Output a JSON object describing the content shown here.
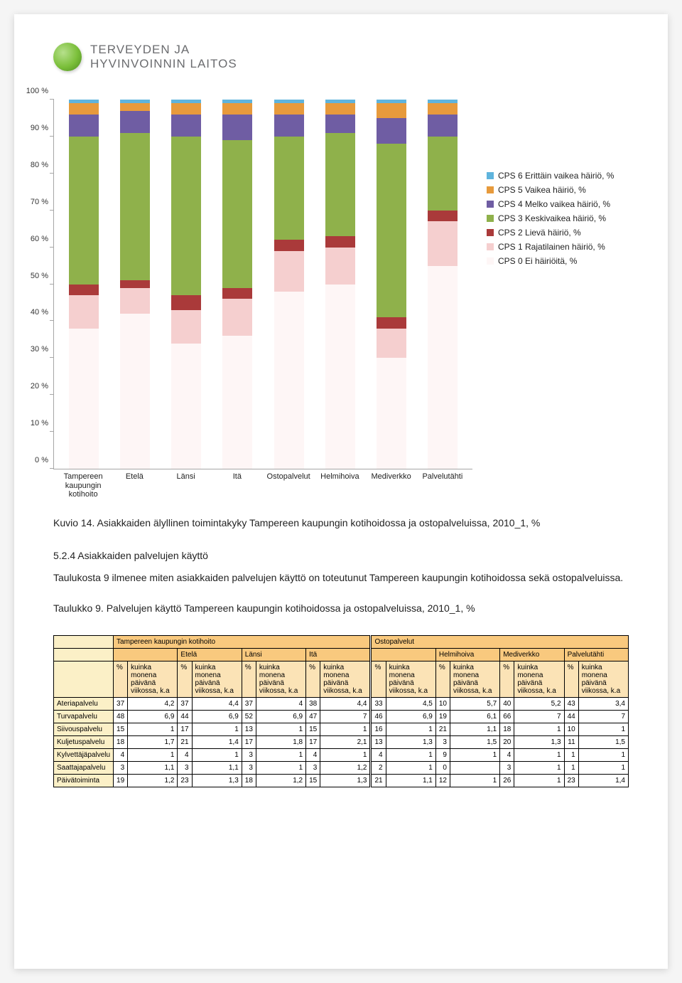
{
  "logo": {
    "line1": "TERVEYDEN JA",
    "line2": "HYVINVOINNIN LAITOS"
  },
  "chart": {
    "type": "bar-stacked-100",
    "y_ticks": [
      "0 %",
      "10 %",
      "20 %",
      "30 %",
      "40 %",
      "50 %",
      "60 %",
      "70 %",
      "80 %",
      "90 %",
      "100 %"
    ],
    "categories": [
      "Tampereen kaupungin kotihoito",
      "Etelä",
      "Länsi",
      "Itä",
      "Ostopalvelut",
      "Helmihoiva",
      "Mediverkko",
      "Palvelutähti"
    ],
    "legend": [
      {
        "label": "CPS 6 Erittäin vaikea häiriö, %",
        "color": "#5fb4dd"
      },
      {
        "label": "CPS 5 Vaikea häiriö, %",
        "color": "#e79a3c"
      },
      {
        "label": "CPS 4 Melko vaikea häiriö, %",
        "color": "#6f5da3"
      },
      {
        "label": "CPS 3 Keskivaikea häiriö, %",
        "color": "#8fb14b"
      },
      {
        "label": "CPS 2 Lievä häiriö, %",
        "color": "#aa3a3a"
      },
      {
        "label": "CPS 1 Rajatilainen häiriö, %",
        "color": "#f5cfcf"
      },
      {
        "label": "CPS 0 Ei häiriöitä, %",
        "color": "#fef6f6"
      }
    ],
    "series_colors": [
      "#fef6f6",
      "#f5cfcf",
      "#aa3a3a",
      "#8fb14b",
      "#6f5da3",
      "#e79a3c",
      "#5fb4dd"
    ],
    "data": [
      [
        38,
        9,
        3,
        40,
        6,
        3,
        1
      ],
      [
        42,
        7,
        2,
        40,
        6,
        2,
        1
      ],
      [
        34,
        9,
        4,
        43,
        6,
        3,
        1
      ],
      [
        36,
        10,
        3,
        40,
        7,
        3,
        1
      ],
      [
        48,
        11,
        3,
        28,
        6,
        3,
        1
      ],
      [
        50,
        10,
        3,
        28,
        5,
        3,
        1
      ],
      [
        30,
        8,
        3,
        47,
        7,
        4,
        1
      ],
      [
        55,
        12,
        3,
        20,
        6,
        3,
        1
      ]
    ],
    "background_color": "#ffffff",
    "axis_color": "#a6a6a6",
    "label_fontsize": 11
  },
  "caption_chart": "Kuvio 14. Asiakkaiden älyllinen toimintakyky Tampereen kaupungin kotihoidossa ja ostopalveluissa, 2010_1, %",
  "section_heading": "5.2.4 Asiakkaiden palvelujen käyttö",
  "body_para": "Taulukosta 9 ilmenee miten asiakkaiden palvelujen käyttö on toteutunut Tampereen kaupungin kotihoidossa sekä ostopalveluissa.",
  "caption_table": "Taulukko 9. Palvelujen käyttö Tampereen kaupungin kotihoidossa ja ostopalveluissa, 2010_1, %",
  "table": {
    "group_a": "Tampereen kaupungin kotihoito",
    "group_b": "Ostopalvelut",
    "cols_a": [
      "Etelä",
      "Länsi",
      "Itä"
    ],
    "cols_b": [
      "Helmihoiva",
      "Mediverkko",
      "Palvelutähti"
    ],
    "sub_pct": "%",
    "sub_km": "kuinka monena päivänä viikossa, k.a",
    "rows": [
      {
        "label": "Ateriapalvelu",
        "a": [
          [
            "37",
            "4,2"
          ],
          [
            "37",
            "4,4"
          ],
          [
            "37",
            "4"
          ],
          [
            "38",
            "4,4"
          ]
        ],
        "b": [
          [
            "33",
            "4,5"
          ],
          [
            "10",
            "5,7"
          ],
          [
            "40",
            "5,2"
          ],
          [
            "43",
            "3,4"
          ]
        ]
      },
      {
        "label": "Turvapalvelu",
        "a": [
          [
            "48",
            "6,9"
          ],
          [
            "44",
            "6,9"
          ],
          [
            "52",
            "6,9"
          ],
          [
            "47",
            "7"
          ]
        ],
        "b": [
          [
            "46",
            "6,9"
          ],
          [
            "19",
            "6,1"
          ],
          [
            "66",
            "7"
          ],
          [
            "44",
            "7"
          ]
        ]
      },
      {
        "label": "Siivouspalvelu",
        "a": [
          [
            "15",
            "1"
          ],
          [
            "17",
            "1"
          ],
          [
            "13",
            "1"
          ],
          [
            "15",
            "1"
          ]
        ],
        "b": [
          [
            "16",
            "1"
          ],
          [
            "21",
            "1,1"
          ],
          [
            "18",
            "1"
          ],
          [
            "10",
            "1"
          ]
        ]
      },
      {
        "label": "Kuljetuspalvelu",
        "a": [
          [
            "18",
            "1,7"
          ],
          [
            "21",
            "1,4"
          ],
          [
            "17",
            "1,8"
          ],
          [
            "17",
            "2,1"
          ]
        ],
        "b": [
          [
            "13",
            "1,3"
          ],
          [
            "3",
            "1,5"
          ],
          [
            "20",
            "1,3"
          ],
          [
            "11",
            "1,5"
          ]
        ]
      },
      {
        "label": "Kylvettäjäpalvelu",
        "a": [
          [
            "4",
            "1"
          ],
          [
            "4",
            "1"
          ],
          [
            "3",
            "1"
          ],
          [
            "4",
            "1"
          ]
        ],
        "b": [
          [
            "4",
            "1"
          ],
          [
            "9",
            "1"
          ],
          [
            "4",
            "1"
          ],
          [
            "1",
            "1"
          ]
        ]
      },
      {
        "label": "Saattajapalvelu",
        "a": [
          [
            "3",
            "1,1"
          ],
          [
            "3",
            "1,1"
          ],
          [
            "3",
            "1"
          ],
          [
            "3",
            "1,2"
          ]
        ],
        "b": [
          [
            "2",
            "1"
          ],
          [
            "0",
            ""
          ],
          [
            "3",
            "1"
          ],
          [
            "1",
            "1"
          ]
        ]
      },
      {
        "label": "Päivätoiminta",
        "a": [
          [
            "19",
            "1,2"
          ],
          [
            "23",
            "1,3"
          ],
          [
            "18",
            "1,2"
          ],
          [
            "15",
            "1,3"
          ]
        ],
        "b": [
          [
            "21",
            "1,1"
          ],
          [
            "12",
            "1"
          ],
          [
            "26",
            "1"
          ],
          [
            "23",
            "1,4"
          ]
        ]
      }
    ]
  }
}
